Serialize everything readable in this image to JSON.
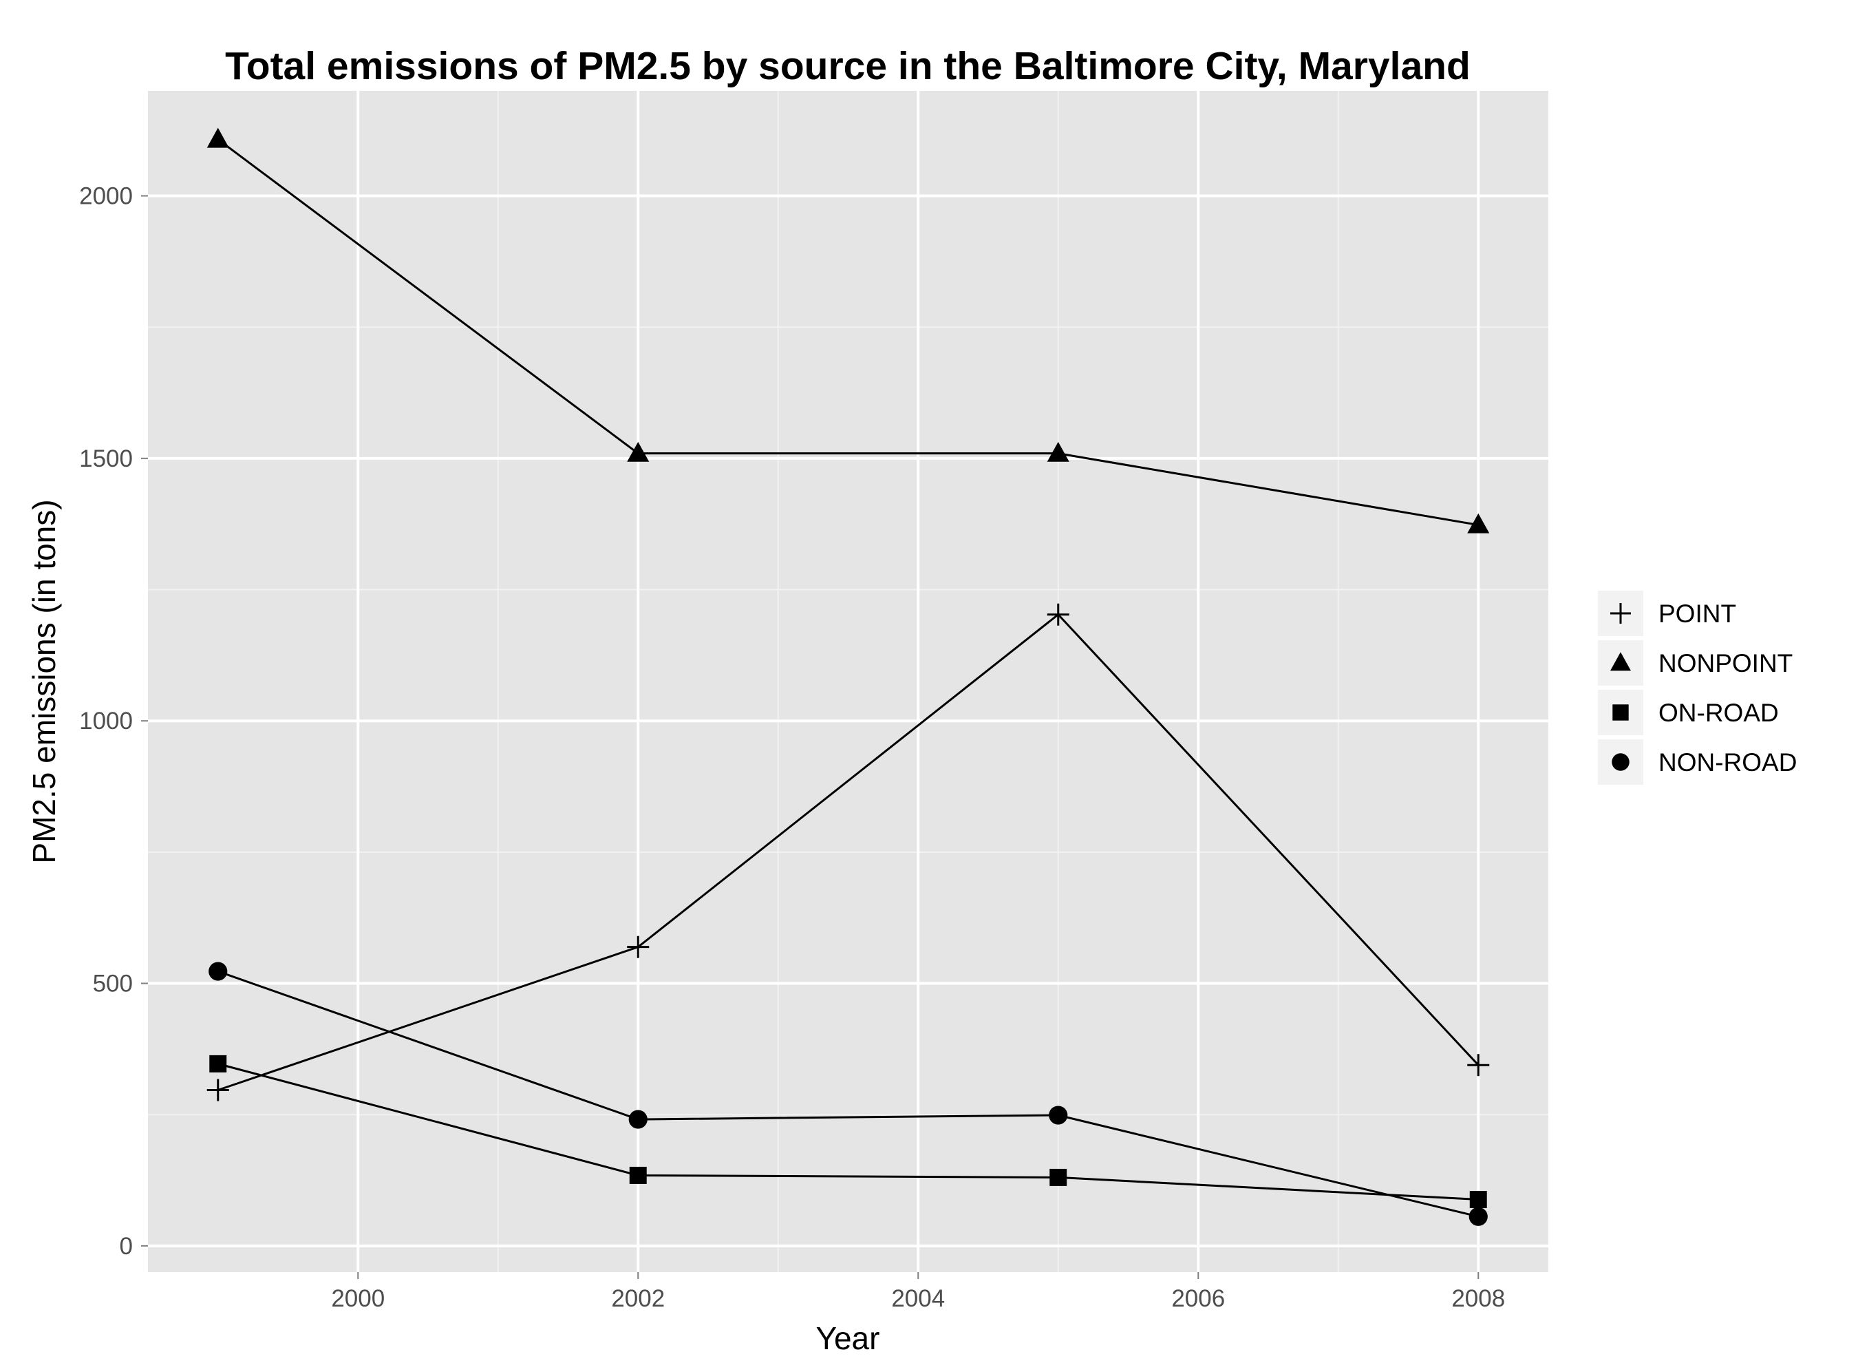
{
  "chart_data": {
    "type": "line",
    "title": "Total emissions of PM2.5 by source in the Baltimore City, Maryland",
    "xlabel": "Year",
    "ylabel": "PM2.5 emissions (in tons)",
    "xlim": [
      1998.5,
      2008.5
    ],
    "ylim": [
      -50,
      2200
    ],
    "x_ticks": [
      2000,
      2002,
      2004,
      2006,
      2008
    ],
    "y_ticks": [
      0,
      500,
      1000,
      1500,
      2000
    ],
    "grid": true,
    "legend_position": "right",
    "x": [
      1999,
      2002,
      2005,
      2008
    ],
    "series": [
      {
        "name": "POINT",
        "shape": "plus",
        "values": [
          296.8,
          569.3,
          1202.5,
          344.4
        ]
      },
      {
        "name": "NONPOINT",
        "shape": "triangle",
        "values": [
          2107.6,
          1509.5,
          1509.5,
          1373.2
        ]
      },
      {
        "name": "ON-ROAD",
        "shape": "square",
        "values": [
          346.8,
          134.3,
          130.4,
          88.3
        ]
      },
      {
        "name": "NON-ROAD",
        "shape": "circle",
        "values": [
          522.9,
          241.0,
          248.9,
          55.8
        ]
      }
    ],
    "colors": {
      "panel": "#e5e5e5",
      "grid": "#ffffff",
      "line": "#000000",
      "tick_text": "#4d4d4d"
    }
  }
}
